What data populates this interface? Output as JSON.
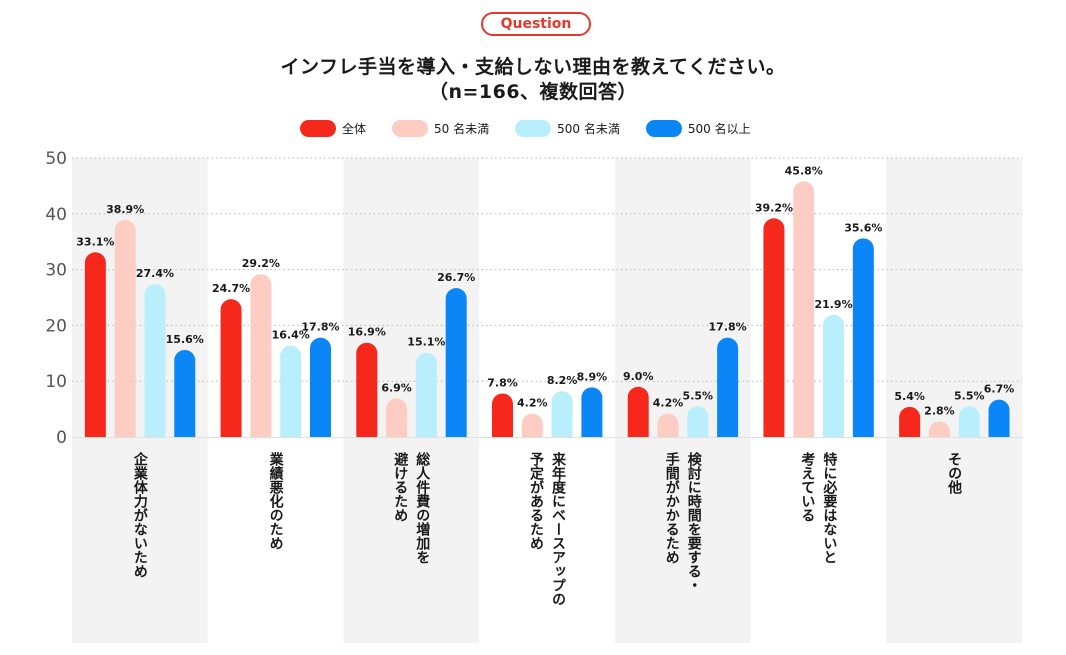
{
  "badge": "Question",
  "title_line1": "インフレ手当を導入・支給しない理由を教えてください。",
  "title_line2": "（n=166、複数回答）",
  "legend": [
    {
      "label": "全体",
      "color": "#f5281b"
    },
    {
      "label": "50 名未満",
      "color": "#fdcdc3"
    },
    {
      "label": "500 名未満",
      "color": "#b9eefc"
    },
    {
      "label": "500 名以上",
      "color": "#0a86f7"
    }
  ],
  "chart_data": {
    "type": "bar",
    "title": "インフレ手当を導入・支給しない理由を教えてください。（n=166、複数回答）",
    "ylim": [
      0,
      50
    ],
    "yticks": [
      0,
      10,
      20,
      30,
      40,
      50
    ],
    "categories": [
      "企業体力がないため",
      "業績悪化のため",
      "総人件費の増加を\n避けるため",
      "来年度にベースアップの\n予定があるため",
      "検討に時間を要する・\n手間がかかるため",
      "特に必要はないと\n考えている",
      "その他"
    ],
    "series": [
      {
        "name": "全体",
        "color": "#f5281b",
        "values": [
          33.1,
          24.7,
          16.9,
          7.8,
          9.0,
          39.2,
          5.4
        ],
        "labels": [
          "33.1%",
          "24.7%",
          "16.9%",
          "7.8%",
          "9.0%",
          "39.2%",
          "5.4%"
        ]
      },
      {
        "name": "50 名未満",
        "color": "#fdcdc3",
        "values": [
          38.9,
          29.2,
          6.9,
          4.2,
          4.2,
          45.8,
          2.8
        ],
        "labels": [
          "38.9%",
          "29.2%",
          "6.9%",
          "4.2%",
          "4.2%",
          "45.8%",
          "2.8%"
        ]
      },
      {
        "name": "500 名未満",
        "color": "#b9eefc",
        "values": [
          27.4,
          16.4,
          15.1,
          8.2,
          5.5,
          21.9,
          5.5
        ],
        "labels": [
          "27.4%",
          "16.4%",
          "15.1%",
          "8.2%",
          "5.5%",
          "21.9%",
          "5.5%"
        ]
      },
      {
        "name": "500 名以上",
        "color": "#0a86f7",
        "values": [
          15.6,
          17.8,
          26.7,
          8.9,
          17.8,
          35.6,
          6.7
        ],
        "labels": [
          "15.6%",
          "17.8%",
          "26.7%",
          "8.9%",
          "17.8%",
          "35.6%",
          "6.7%"
        ]
      }
    ]
  }
}
